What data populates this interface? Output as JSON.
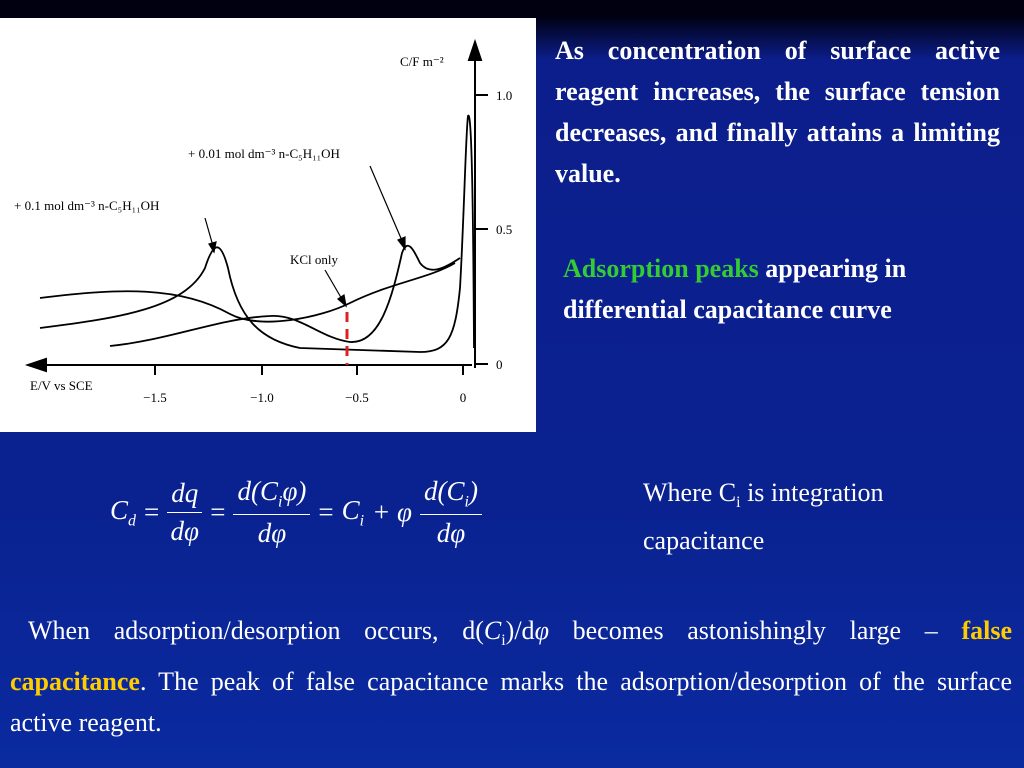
{
  "figure": {
    "y_axis_label": "C/F m⁻²",
    "x_axis_label": "E/V vs SCE",
    "x_ticks": [
      "−1.5",
      "−1.0",
      "−0.5",
      "0"
    ],
    "y_ticks": [
      "1.0",
      "0.5",
      "0"
    ],
    "annotations": [
      "+ 0.01 mol dm⁻³ n-C₅H₁₁OH",
      "+ 0.1 mol dm⁻³ n-C₅H₁₁OH",
      "KCl only"
    ]
  },
  "intro_text": "As concentration of surface active reagent increases, the surface tension decreases, and finally attains a limiting value.",
  "peaks_text": {
    "highlight": "Adsorption peaks",
    "rest": "appearing in differential capacitance curve"
  },
  "equation": {
    "cd": "C",
    "cd_sub": "d",
    "equals": "=",
    "f1_num": "dq",
    "f1_den": "dφ",
    "f2_num_pre": "d(C",
    "f2_num_sub": "i",
    "f2_num_post": "φ)",
    "f2_den": "dφ",
    "ci": "C",
    "ci_sub": "i",
    "plus_phi": "+ φ",
    "f3_num_pre": "d(C",
    "f3_num_sub": "i",
    "f3_num_post": ")",
    "f3_den": "dφ"
  },
  "note": {
    "pre": "Where C",
    "sub": "i",
    "post": " is integration capacitance"
  },
  "bottom": {
    "p1": "When adsorption/desorption occurs, d(",
    "ci": "C",
    "ci_sub": "i",
    "p2": ")/d",
    "phi": "φ",
    "p3": " becomes astonishingly large – ",
    "highlight": "false capacitance",
    "p4": ". The peak of false capacitance marks the adsorption/desorption of the surface active reagent."
  }
}
